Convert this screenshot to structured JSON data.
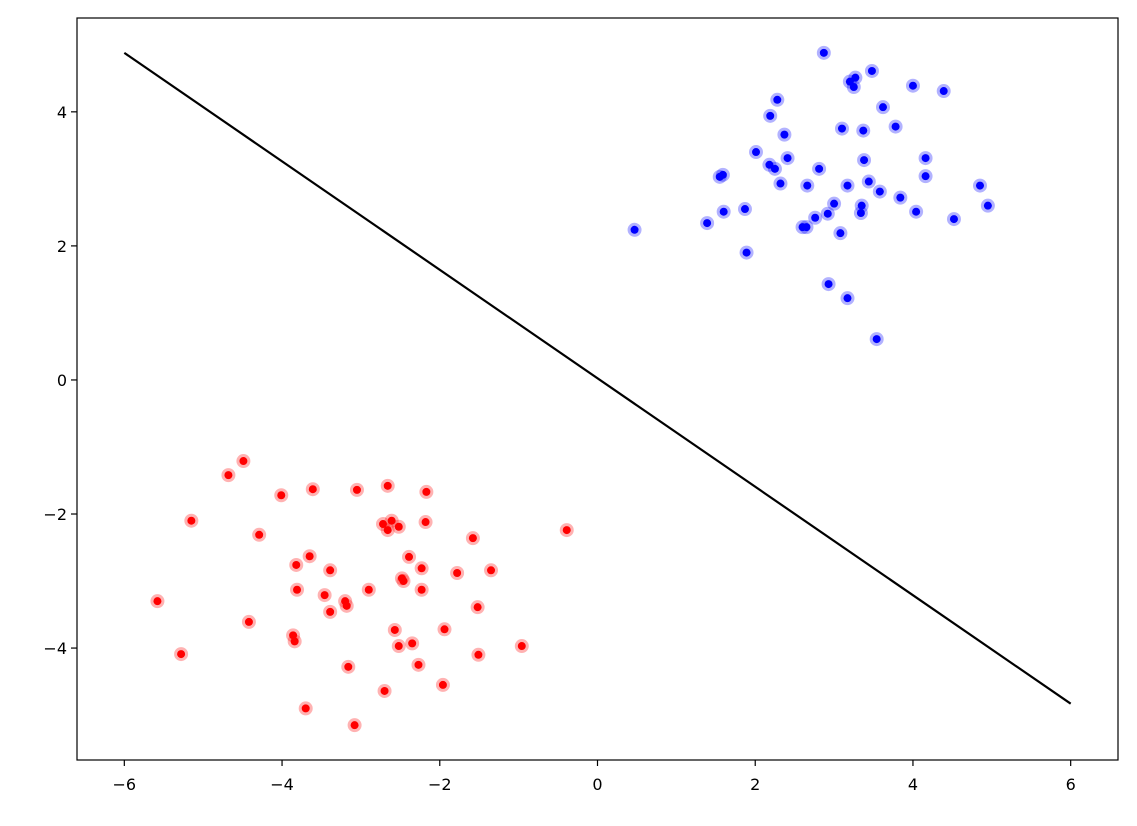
{
  "chart_data": {
    "type": "scatter",
    "xlim": [
      -6.6,
      6.6
    ],
    "ylim": [
      -5.67,
      5.4
    ],
    "xticks": [
      {
        "value": -6,
        "label": "−6"
      },
      {
        "value": -4,
        "label": "−4"
      },
      {
        "value": -2,
        "label": "−2"
      },
      0,
      2,
      4,
      6
    ],
    "yticks": [
      {
        "value": -4,
        "label": "−4"
      },
      {
        "value": -2,
        "label": "−2"
      },
      0,
      2,
      4
    ],
    "series": [
      {
        "color": "#0000ff",
        "style": "points",
        "x": [
          0.47,
          1.39,
          1.6,
          1.55,
          1.59,
          1.87,
          1.89,
          2.01,
          2.19,
          2.28,
          2.18,
          2.25,
          2.37,
          2.41,
          2.32,
          2.66,
          2.81,
          2.6,
          2.65,
          2.76,
          2.92,
          3.0,
          3.08,
          2.93,
          3.17,
          3.1,
          3.17,
          2.87,
          3.2,
          3.27,
          3.25,
          3.48,
          3.62,
          3.37,
          3.38,
          3.44,
          3.58,
          3.35,
          3.34,
          3.54,
          3.78,
          3.84,
          4.0,
          4.39,
          4.16,
          4.16,
          4.04,
          4.52,
          4.85,
          4.95
        ],
        "y": [
          2.24,
          2.34,
          2.51,
          3.03,
          3.06,
          2.55,
          1.9,
          3.4,
          3.94,
          4.18,
          3.21,
          3.15,
          3.66,
          3.31,
          2.93,
          2.9,
          3.15,
          2.28,
          2.28,
          2.42,
          2.48,
          2.63,
          2.19,
          1.43,
          1.22,
          3.75,
          2.9,
          4.88,
          4.45,
          4.51,
          4.37,
          4.61,
          4.07,
          3.72,
          3.28,
          2.96,
          2.81,
          2.6,
          2.49,
          0.61,
          3.78,
          2.72,
          4.39,
          4.31,
          3.31,
          3.04,
          2.51,
          2.4,
          2.9,
          2.6
        ]
      },
      {
        "color": "#ff0000",
        "style": "points",
        "x": [
          -4.49,
          -4.68,
          -5.15,
          -4.01,
          -3.61,
          -3.05,
          -2.66,
          -2.17,
          -4.29,
          -5.58,
          -5.28,
          -4.42,
          -3.82,
          -3.65,
          -3.81,
          -3.39,
          -3.46,
          -3.39,
          -3.2,
          -3.18,
          -3.86,
          -3.84,
          -3.7,
          -3.16,
          -3.08,
          -2.9,
          -2.72,
          -2.66,
          -2.61,
          -2.52,
          -2.18,
          -2.39,
          -2.48,
          -2.46,
          -2.23,
          -2.23,
          -2.57,
          -2.52,
          -2.35,
          -2.27,
          -2.7,
          -1.94,
          -1.96,
          -1.78,
          -1.58,
          -1.35,
          -1.52,
          -1.51,
          -0.96,
          -0.39
        ],
        "y": [
          -1.21,
          -1.42,
          -2.1,
          -1.72,
          -1.63,
          -1.64,
          -1.58,
          -1.67,
          -2.31,
          -3.3,
          -4.09,
          -3.61,
          -2.76,
          -2.63,
          -3.13,
          -2.84,
          -3.21,
          -3.46,
          -3.3,
          -3.37,
          -3.81,
          -3.9,
          -4.9,
          -4.28,
          -5.15,
          -3.13,
          -2.15,
          -2.24,
          -2.1,
          -2.19,
          -2.12,
          -2.64,
          -2.96,
          -3.0,
          -2.81,
          -3.13,
          -3.73,
          -3.97,
          -3.93,
          -4.25,
          -4.64,
          -3.72,
          -4.55,
          -2.88,
          -2.36,
          -2.84,
          -3.39,
          -4.1,
          -3.97,
          -2.24
        ]
      },
      {
        "color": "#000000",
        "style": "line",
        "x": [
          -6,
          6
        ],
        "y": [
          4.88,
          -4.83
        ]
      }
    ]
  }
}
